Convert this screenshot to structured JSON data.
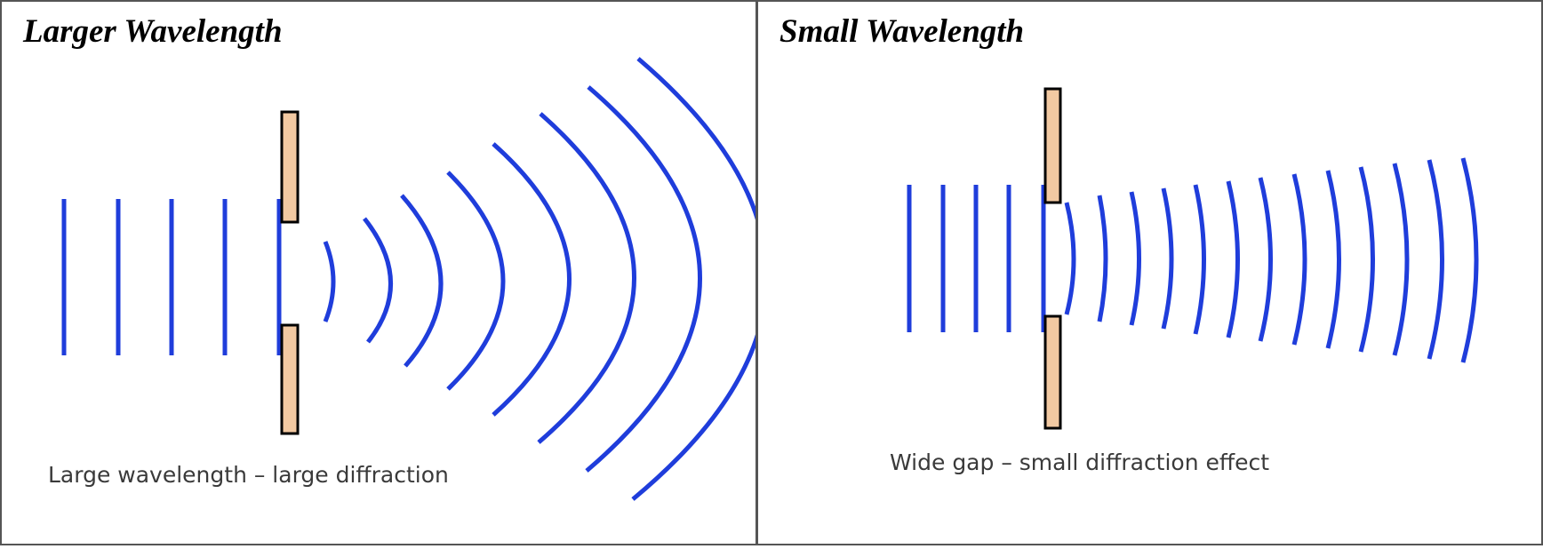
{
  "left": {
    "title": "Larger Wavelength",
    "caption": "Large wavelength – large diffraction"
  },
  "right": {
    "title": "Small Wavelength",
    "caption": "Wide gap – small diffraction effect"
  },
  "colors": {
    "wave": "#1f3ddb",
    "barrier_fill": "#f2c9a2",
    "barrier_stroke": "#000000",
    "border": "#555555"
  }
}
